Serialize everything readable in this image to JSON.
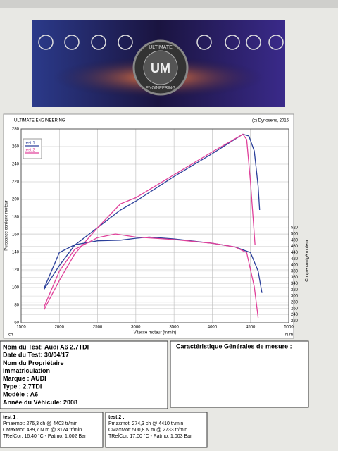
{
  "banner": {
    "logo": "UM",
    "ring_top": "ULTIMATE",
    "ring_bottom": "ENGINEERING"
  },
  "chart_data": {
    "type": "line",
    "title": "ULTIMATE ENGINEERING",
    "subtitle": "(c) Dynosens, 2016",
    "xlabel": "Vitesse moteur (tr/min)",
    "ylabel": "Puissance corrigée moteur",
    "y2label": "Couple corrigé moteur",
    "yunit": "ch",
    "y2unit": "N.m",
    "xlim": [
      1500,
      5000
    ],
    "xticks": [
      1500,
      2000,
      2500,
      3000,
      3500,
      4000,
      4500,
      5000
    ],
    "ylim": [
      60,
      280
    ],
    "yticks": [
      60,
      80,
      100,
      120,
      140,
      160,
      180,
      200,
      220,
      240,
      260,
      280
    ],
    "y2lim": [
      214,
      838
    ],
    "y2ticks": [
      220,
      240,
      260,
      280,
      300,
      320,
      340,
      360,
      380,
      400,
      420,
      440,
      460,
      480,
      500,
      520
    ],
    "grid": true,
    "legend": "top-left",
    "series": [
      {
        "name": "test 1",
        "color": "#2a3f9a",
        "x": [
          1800,
          2000,
          2200,
          2500,
          2800,
          3000,
          3500,
          4000,
          4400,
          4480,
          4550,
          4600,
          4620
        ],
        "values": [
          98,
          125,
          148,
          168,
          188,
          198,
          226,
          252,
          274,
          272,
          255,
          215,
          188
        ]
      },
      {
        "name": "test 2",
        "color": "#e0409a",
        "x": [
          1800,
          2000,
          2200,
          2500,
          2800,
          3000,
          3500,
          4000,
          4400,
          4450,
          4500,
          4560
        ],
        "values": [
          75,
          108,
          138,
          168,
          195,
          202,
          228,
          254,
          274,
          268,
          220,
          148
        ]
      },
      {
        "color": "#2a3f9a",
        "axis": "y2",
        "x": [
          1800,
          2000,
          2200,
          2500,
          2800,
          3000,
          3174,
          3500,
          4000,
          4300,
          4500,
          4600,
          4650
        ],
        "values": [
          325,
          440,
          465,
          478,
          480,
          486,
          490,
          484,
          470,
          458,
          440,
          380,
          310
        ]
      },
      {
        "color": "#e0409a",
        "axis": "y2",
        "x": [
          1800,
          2000,
          2200,
          2500,
          2733,
          3000,
          3500,
          4000,
          4300,
          4450,
          4550,
          4600
        ],
        "values": [
          265,
          380,
          450,
          488,
          500,
          490,
          482,
          470,
          458,
          440,
          330,
          230
        ]
      }
    ]
  },
  "info": {
    "lines": [
      "Nom du Test: Audi A6 2.7TDI",
      "Date du Test: 30/04/17",
      "Nom du Propriétaire",
      "Immatriculation",
      "Marque : AUDI",
      "Type : 2.7TDI",
      "Modèle : A6",
      "Année du Véhicule: 2008"
    ],
    "title_right": "Caractéristique Générales de mesure :"
  },
  "results": [
    {
      "title": "test 1 :",
      "lines": [
        "Pmaxmot: 276,3 ch @ 4403 tr/min",
        "CMaxMot: 489,7 N.m @ 3174 tr/min",
        "TRefCor: 16,40 °C - Patmo: 1,002 Bar"
      ]
    },
    {
      "title": "test 2 :",
      "lines": [
        "Pmaxmot: 274,3 ch @ 4410 tr/min",
        "CMaxMot: 500,8 N.m @ 2733 tr/min",
        "TRefCor: 17,00 °C - Patmo: 1,003 Bar"
      ]
    }
  ]
}
